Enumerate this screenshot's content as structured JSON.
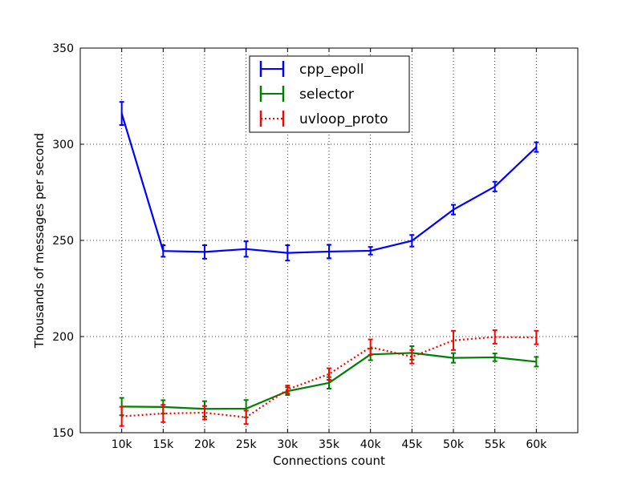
{
  "chart_data": {
    "type": "line",
    "title": "",
    "xlabel": "Connections count",
    "ylabel": "Thousands of messages per second",
    "categories": [
      "10k",
      "15k",
      "20k",
      "25k",
      "30k",
      "35k",
      "40k",
      "45k",
      "50k",
      "55k",
      "60k"
    ],
    "x": [
      10,
      15,
      20,
      25,
      30,
      35,
      40,
      45,
      50,
      55,
      60
    ],
    "xlim": [
      5,
      65
    ],
    "ylim": [
      150,
      350
    ],
    "yticks": [
      150,
      200,
      250,
      300,
      350
    ],
    "grid": true,
    "legend_position": "top-center",
    "series": [
      {
        "name": "cpp_epoll",
        "color": "#0000ff",
        "line_style": "solid",
        "values": [
          316,
          244.5,
          244,
          245.5,
          243.5,
          244.2,
          244.6,
          249.8,
          266,
          278,
          298.5
        ],
        "errors": [
          6,
          3,
          3.5,
          4,
          4,
          3.5,
          2,
          3,
          2.5,
          2.5,
          2.5
        ]
      },
      {
        "name": "selector",
        "color": "#008000",
        "line_style": "solid",
        "values": [
          163.6,
          163.4,
          162.4,
          162.5,
          171.6,
          175.9,
          190.7,
          191.5,
          188.9,
          189.2,
          186.9
        ],
        "errors": [
          4.5,
          3.5,
          4,
          4.5,
          2,
          3,
          3,
          3.5,
          2.5,
          2,
          2.5
        ]
      },
      {
        "name": "uvloop_proto",
        "color": "#ff0000",
        "line_style": "dotted",
        "values": [
          158.5,
          160,
          160.4,
          158,
          172.5,
          180.5,
          194.5,
          189.5,
          198,
          199.8,
          199.5
        ],
        "errors": [
          5,
          4.5,
          3.5,
          3.5,
          2,
          3,
          4,
          3.5,
          5,
          3.5,
          3.5
        ]
      }
    ]
  }
}
